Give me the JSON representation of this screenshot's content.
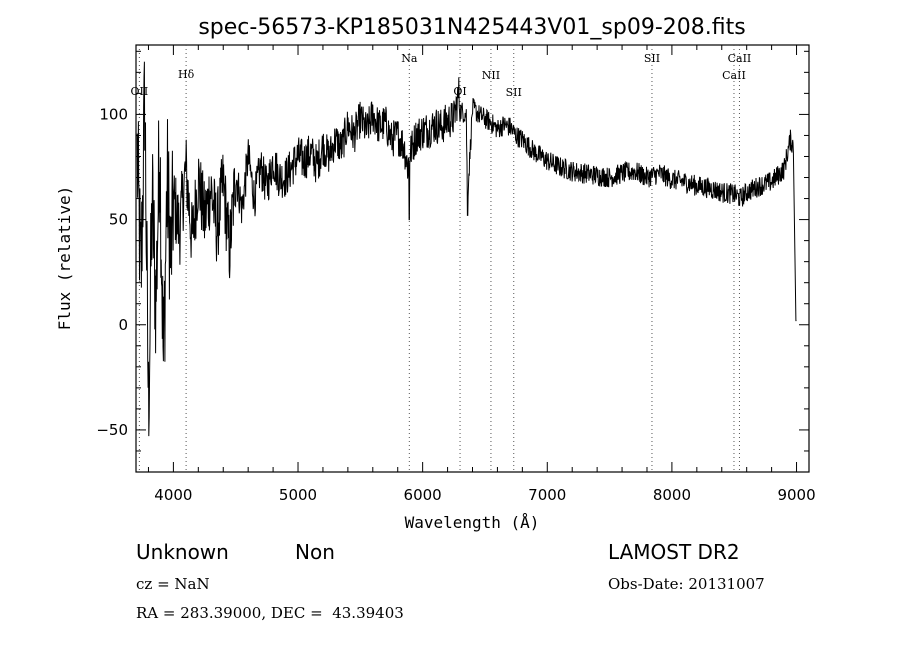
{
  "chart_data": {
    "type": "line",
    "title": "spec-56573-KP185031N425443V01_sp09-208.fits",
    "xlabel": "Wavelength (Å)",
    "ylabel": "Flux (relative)",
    "xlim": [
      3700,
      9100
    ],
    "ylim": [
      -70,
      133
    ],
    "xticks": [
      4000,
      5000,
      6000,
      7000,
      8000,
      9000
    ],
    "yticks": [
      -50,
      0,
      50,
      100
    ],
    "grid": false,
    "lines": [
      {
        "label": "OII",
        "x": 3727
      },
      {
        "label": "Hδ",
        "x": 4102
      },
      {
        "label": "Na",
        "x": 5893
      },
      {
        "label": "OI",
        "x": 6300
      },
      {
        "label": "NII",
        "x": 6548
      },
      {
        "label": "SII",
        "x": 6731
      },
      {
        "label": "SII",
        "x": 7840
      },
      {
        "label": "CaII",
        "x": 8498
      },
      {
        "label": "CaII",
        "x": 8542
      }
    ],
    "series": [
      {
        "x": [
          3710,
          3740,
          3770,
          3800,
          3830,
          3860,
          3890,
          3920,
          3950,
          3980,
          4000,
          4050,
          4100,
          4150,
          4200,
          4250,
          4300,
          4350,
          4400,
          4450,
          4500,
          4550,
          4600,
          4650,
          4700,
          4750,
          4800,
          4850,
          4900,
          4950,
          5000,
          5050,
          5100,
          5150,
          5200,
          5250,
          5300,
          5350,
          5400,
          5450,
          5500,
          5550,
          5600,
          5650,
          5700,
          5750,
          5800,
          5850,
          5880,
          5900,
          5950,
          6000,
          6050,
          6100,
          6150,
          6200,
          6250,
          6290,
          6300,
          6350,
          6360,
          6400,
          6450,
          6500,
          6550,
          6600,
          6650,
          6700,
          6750,
          6800,
          6850,
          6900,
          6950,
          7000,
          7100,
          7200,
          7300,
          7400,
          7500,
          7600,
          7700,
          7800,
          7900,
          8000,
          8100,
          8200,
          8300,
          8400,
          8500,
          8550,
          8600,
          8700,
          8800,
          8900,
          8950,
          8975,
          9000
        ],
        "values": [
          80,
          20,
          110,
          -40,
          60,
          10,
          90,
          -20,
          70,
          30,
          60,
          45,
          75,
          40,
          70,
          50,
          65,
          45,
          68,
          35,
          72,
          55,
          80,
          60,
          75,
          65,
          78,
          70,
          70,
          75,
          80,
          78,
          82,
          76,
          85,
          80,
          88,
          84,
          95,
          90,
          98,
          92,
          100,
          94,
          96,
          88,
          90,
          85,
          75,
          82,
          90,
          92,
          93,
          95,
          94,
          97,
          98,
          110,
          102,
          100,
          60,
          103,
          100,
          98,
          96,
          93,
          95,
          94,
          90,
          88,
          85,
          82,
          80,
          78,
          75,
          73,
          72,
          71,
          70,
          72,
          73,
          70,
          72,
          69,
          68,
          66,
          65,
          63,
          62,
          60,
          63,
          66,
          68,
          74,
          88,
          85,
          2
        ]
      }
    ]
  },
  "info": {
    "class_label": "Unknown",
    "subclass_label": "Non",
    "cz": "cz = NaN",
    "radec": "RA = 283.39000, DEC =  43.39403",
    "survey": "LAMOST DR2",
    "obs_date": "Obs-Date: 20131007"
  }
}
